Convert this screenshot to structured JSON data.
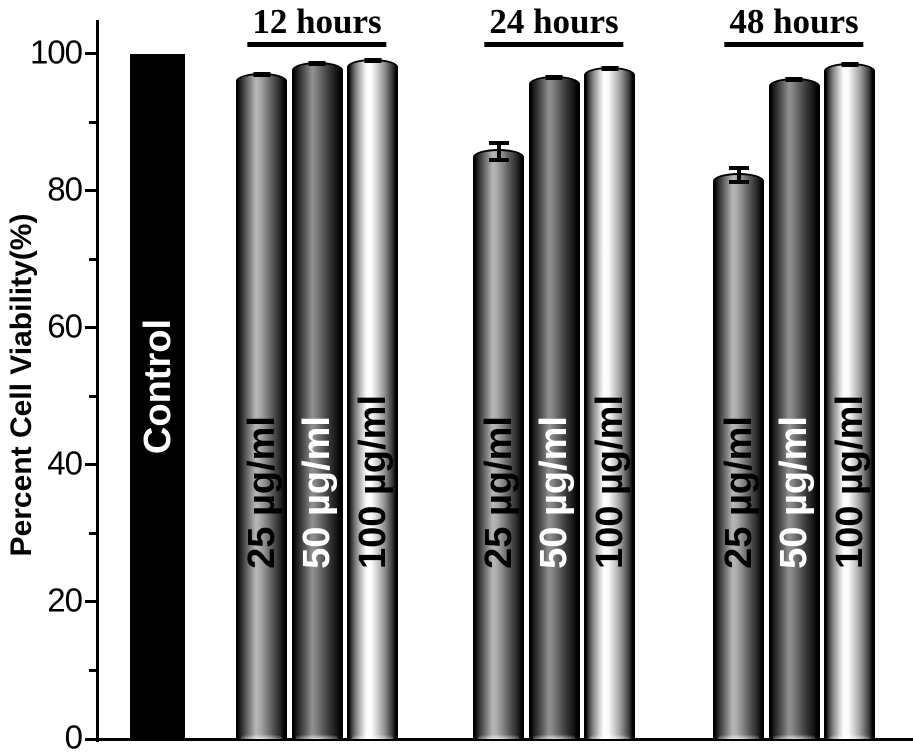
{
  "chart_data": {
    "type": "bar",
    "title": "",
    "ylabel": "Percent Cell Viability(%)",
    "xlabel": "",
    "ylim": [
      0,
      104.8
    ],
    "yticks_major": [
      0,
      20,
      40,
      60,
      80,
      100
    ],
    "yticks_minor": [
      10,
      30,
      50,
      70,
      90
    ],
    "grid": false,
    "legend_position": "none (labels written inside bars)",
    "error_bars": true,
    "groups": [
      {
        "header": "",
        "bars": [
          {
            "label": "Control",
            "value": 100.0,
            "err": 0,
            "shade": "black",
            "text_color": "#ffffff"
          }
        ]
      },
      {
        "header": "12 hours",
        "bars": [
          {
            "label": "25 µg/ml",
            "value": 97.1,
            "err": 0.5,
            "shade": "gray",
            "text_color": "#000000"
          },
          {
            "label": "50 µg/ml",
            "value": 98.8,
            "err": 0.5,
            "shade": "dark",
            "text_color": "#ffffff"
          },
          {
            "label": "100 µg/ml",
            "value": 99.2,
            "err": 0.4,
            "shade": "light",
            "text_color": "#000000"
          }
        ]
      },
      {
        "header": "24 hours",
        "bars": [
          {
            "label": "25 µg/ml",
            "value": 86.0,
            "err": 1.3,
            "shade": "gray",
            "text_color": "#000000"
          },
          {
            "label": "50 µg/ml",
            "value": 96.7,
            "err": 0.5,
            "shade": "dark",
            "text_color": "#ffffff"
          },
          {
            "label": "100 µg/ml",
            "value": 98.0,
            "err": 0.4,
            "shade": "light",
            "text_color": "#000000"
          }
        ]
      },
      {
        "header": "48 hours",
        "bars": [
          {
            "label": "25 µg/ml",
            "value": 82.6,
            "err": 1.0,
            "shade": "gray",
            "text_color": "#000000"
          },
          {
            "label": "50 µg/ml",
            "value": 96.4,
            "err": 0.4,
            "shade": "dark",
            "text_color": "#ffffff"
          },
          {
            "label": "100 µg/ml",
            "value": 98.6,
            "err": 0.4,
            "shade": "light",
            "text_color": "#000000"
          }
        ]
      }
    ],
    "colors": {
      "axis": "#000000",
      "bar_border": "#000000",
      "background": "#ffffff",
      "control_bar": "#000000"
    }
  }
}
